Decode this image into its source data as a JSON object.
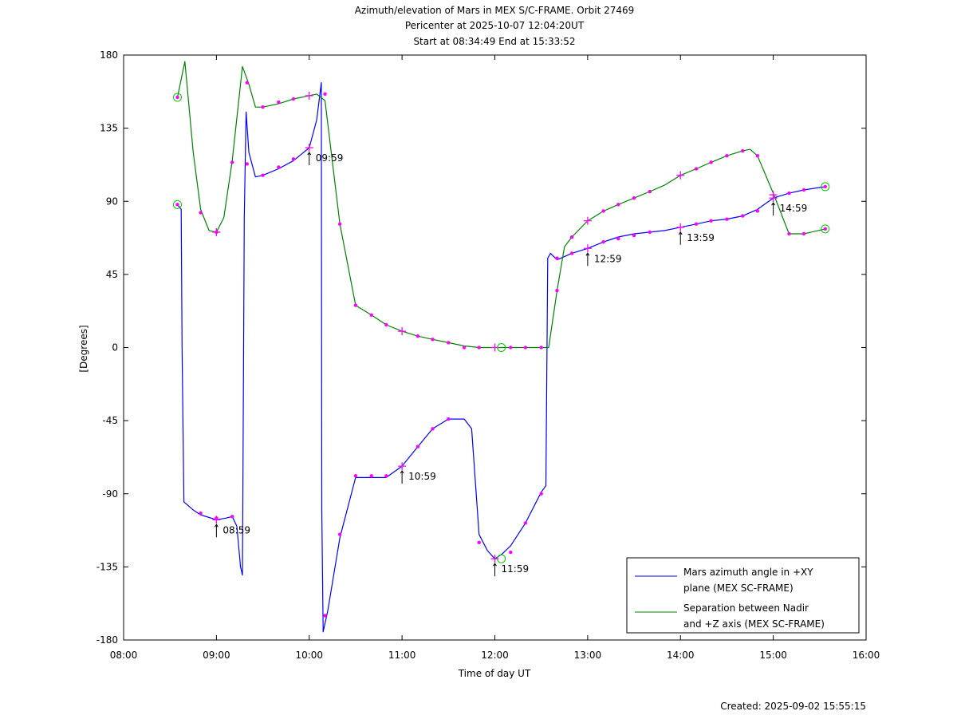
{
  "chart_data": {
    "type": "line",
    "title_lines": [
      "Azimuth/elevation of Mars in MEX S/C-FRAME.  Orbit 27469",
      "Pericenter at 2025-10-07 12:04:20UT",
      "Start at 08:34:49 End at 15:33:52"
    ],
    "xlabel": "Time of day UT",
    "ylabel": "[Degrees]",
    "xlim_hours": [
      8,
      16
    ],
    "ylim": [
      -180,
      180
    ],
    "x_ticks": [
      "08:00",
      "09:00",
      "10:00",
      "11:00",
      "12:00",
      "13:00",
      "14:00",
      "15:00",
      "16:00"
    ],
    "y_ticks": [
      "180",
      "135",
      "90",
      "45",
      "0",
      "-45",
      "-90",
      "-135",
      "-180"
    ],
    "grid": false,
    "legend_position": "bottom-right",
    "created": "Created: 2025-09-02 15:55:15",
    "series": [
      {
        "name": "Mars azimuth angle in +XY plane (MEX SC-FRAME)",
        "legend_lines": [
          "Mars azimuth angle in +XY",
          "plane (MEX SC-FRAME)"
        ],
        "color": "#0000ff",
        "x": [
          8.58,
          8.62,
          8.63,
          8.65,
          8.75,
          8.83,
          9.0,
          9.1,
          9.17,
          9.22,
          9.26,
          9.28,
          9.3,
          9.32,
          9.35,
          9.42,
          9.5,
          9.67,
          9.83,
          10.0,
          10.08,
          10.13,
          10.135,
          10.15,
          10.2,
          10.33,
          10.5,
          10.67,
          10.83,
          11.0,
          11.17,
          11.33,
          11.5,
          11.67,
          11.75,
          11.83,
          11.92,
          12.0,
          12.08,
          12.17,
          12.33,
          12.5,
          12.55,
          12.57,
          12.6,
          12.67,
          12.83,
          13.0,
          13.17,
          13.33,
          13.5,
          13.67,
          13.83,
          14.0,
          14.17,
          14.33,
          14.5,
          14.67,
          14.83,
          15.0,
          15.17,
          15.33,
          15.56
        ],
        "y": [
          88,
          85,
          0,
          -95,
          -100,
          -103,
          -106,
          -105,
          -104,
          -110,
          -135,
          -140,
          80,
          145,
          120,
          105,
          106,
          110,
          115,
          123,
          140,
          163,
          -100,
          -175,
          -162,
          -117,
          -80,
          -80,
          -80,
          -73,
          -61,
          -50,
          -44,
          -44,
          -50,
          -115,
          -125,
          -130,
          -127,
          -122,
          -108,
          -89,
          -85,
          55,
          58,
          54,
          58,
          61,
          65,
          68,
          70,
          71,
          72,
          74,
          76,
          78,
          79,
          81,
          85,
          92,
          95,
          97,
          99
        ]
      },
      {
        "name": "Separation between Nadir and +Z axis (MEX SC-FRAME)",
        "legend_lines": [
          "Separation between Nadir",
          "and +Z axis (MEX SC-FRAME)"
        ],
        "color": "#008000",
        "x": [
          8.58,
          8.66,
          8.75,
          8.83,
          8.92,
          9.0,
          9.08,
          9.17,
          9.28,
          9.35,
          9.42,
          9.5,
          9.67,
          9.83,
          10.0,
          10.08,
          10.17,
          10.33,
          10.5,
          10.67,
          10.83,
          11.0,
          11.17,
          11.33,
          11.5,
          11.67,
          11.83,
          12.0,
          12.08,
          12.25,
          12.5,
          12.58,
          12.67,
          12.75,
          12.83,
          13.0,
          13.17,
          13.33,
          13.5,
          13.67,
          13.83,
          14.0,
          14.17,
          14.33,
          14.5,
          14.67,
          14.75,
          14.83,
          15.0,
          15.17,
          15.33,
          15.56
        ],
        "y": [
          154,
          176,
          120,
          85,
          72,
          71,
          80,
          115,
          173,
          162,
          148,
          148,
          150,
          153,
          155,
          156,
          152,
          76,
          26,
          20,
          14,
          10,
          7,
          5,
          3,
          1,
          0,
          0,
          0,
          0,
          0,
          0,
          35,
          62,
          68,
          78,
          84,
          88,
          92,
          96,
          100,
          106,
          110,
          114,
          118,
          121,
          122,
          118,
          95,
          70,
          70,
          73
        ]
      }
    ],
    "markers": {
      "dots": [
        [
          8.58,
          88
        ],
        [
          8.58,
          154
        ],
        [
          8.83,
          83
        ],
        [
          8.83,
          -102
        ],
        [
          9.0,
          -105
        ],
        [
          9.0,
          71
        ],
        [
          9.17,
          114
        ],
        [
          9.17,
          -104
        ],
        [
          9.33,
          163
        ],
        [
          9.33,
          113
        ],
        [
          9.5,
          148
        ],
        [
          9.5,
          106
        ],
        [
          9.67,
          151
        ],
        [
          9.67,
          111
        ],
        [
          9.83,
          153
        ],
        [
          9.83,
          116
        ],
        [
          10.17,
          156
        ],
        [
          10.17,
          -165
        ],
        [
          10.33,
          76
        ],
        [
          10.33,
          -115
        ],
        [
          10.5,
          26
        ],
        [
          10.5,
          -79
        ],
        [
          10.67,
          20
        ],
        [
          10.67,
          -79
        ],
        [
          10.83,
          14
        ],
        [
          10.83,
          -79
        ],
        [
          11.17,
          7
        ],
        [
          11.17,
          -61
        ],
        [
          11.33,
          5
        ],
        [
          11.33,
          -50
        ],
        [
          11.5,
          3
        ],
        [
          11.5,
          -44
        ],
        [
          11.67,
          0
        ],
        [
          11.83,
          0
        ],
        [
          11.83,
          -120
        ],
        [
          12.17,
          0
        ],
        [
          12.17,
          -126
        ],
        [
          12.33,
          0
        ],
        [
          12.33,
          -108
        ],
        [
          12.5,
          0
        ],
        [
          12.5,
          -90
        ],
        [
          12.67,
          35
        ],
        [
          12.67,
          55
        ],
        [
          12.83,
          68
        ],
        [
          12.83,
          58
        ],
        [
          13.17,
          84
        ],
        [
          13.17,
          65
        ],
        [
          13.33,
          88
        ],
        [
          13.33,
          67
        ],
        [
          13.5,
          92
        ],
        [
          13.5,
          69
        ],
        [
          13.67,
          96
        ],
        [
          13.67,
          71
        ],
        [
          14.17,
          110
        ],
        [
          14.17,
          76
        ],
        [
          14.33,
          114
        ],
        [
          14.33,
          78
        ],
        [
          14.5,
          118
        ],
        [
          14.5,
          79
        ],
        [
          14.67,
          121
        ],
        [
          14.67,
          81
        ],
        [
          14.83,
          118
        ],
        [
          14.83,
          84
        ],
        [
          15.17,
          70
        ],
        [
          15.17,
          95
        ],
        [
          15.33,
          70
        ],
        [
          15.33,
          97
        ],
        [
          15.56,
          73
        ],
        [
          15.56,
          99
        ]
      ],
      "crosses": [
        [
          9.0,
          -106
        ],
        [
          9.0,
          71
        ],
        [
          10.0,
          123
        ],
        [
          10.0,
          155
        ],
        [
          11.0,
          -73
        ],
        [
          11.0,
          10
        ],
        [
          12.0,
          -130
        ],
        [
          12.0,
          0
        ],
        [
          13.0,
          61
        ],
        [
          13.0,
          78
        ],
        [
          14.0,
          74
        ],
        [
          14.0,
          106
        ],
        [
          15.0,
          92
        ],
        [
          15.0,
          94
        ]
      ],
      "start_end_circles": [
        [
          8.58,
          88
        ],
        [
          8.58,
          154
        ],
        [
          12.07,
          0
        ],
        [
          12.07,
          -130
        ],
        [
          15.56,
          73
        ],
        [
          15.56,
          99
        ]
      ],
      "hour_labels": [
        {
          "x": 9.0,
          "y": -106,
          "text": "08:59"
        },
        {
          "x": 10.0,
          "y": 123,
          "text": "09:59"
        },
        {
          "x": 11.0,
          "y": -73,
          "text": "10:59"
        },
        {
          "x": 12.0,
          "y": -130,
          "text": "11:59"
        },
        {
          "x": 13.0,
          "y": 61,
          "text": "12:59"
        },
        {
          "x": 14.0,
          "y": 74,
          "text": "13:59"
        },
        {
          "x": 15.0,
          "y": 92,
          "text": "14:59"
        }
      ]
    },
    "colors": {
      "marker": "#ff00ff",
      "circle": "#00cc00",
      "axis": "#000000",
      "background": "#ffffff"
    }
  }
}
